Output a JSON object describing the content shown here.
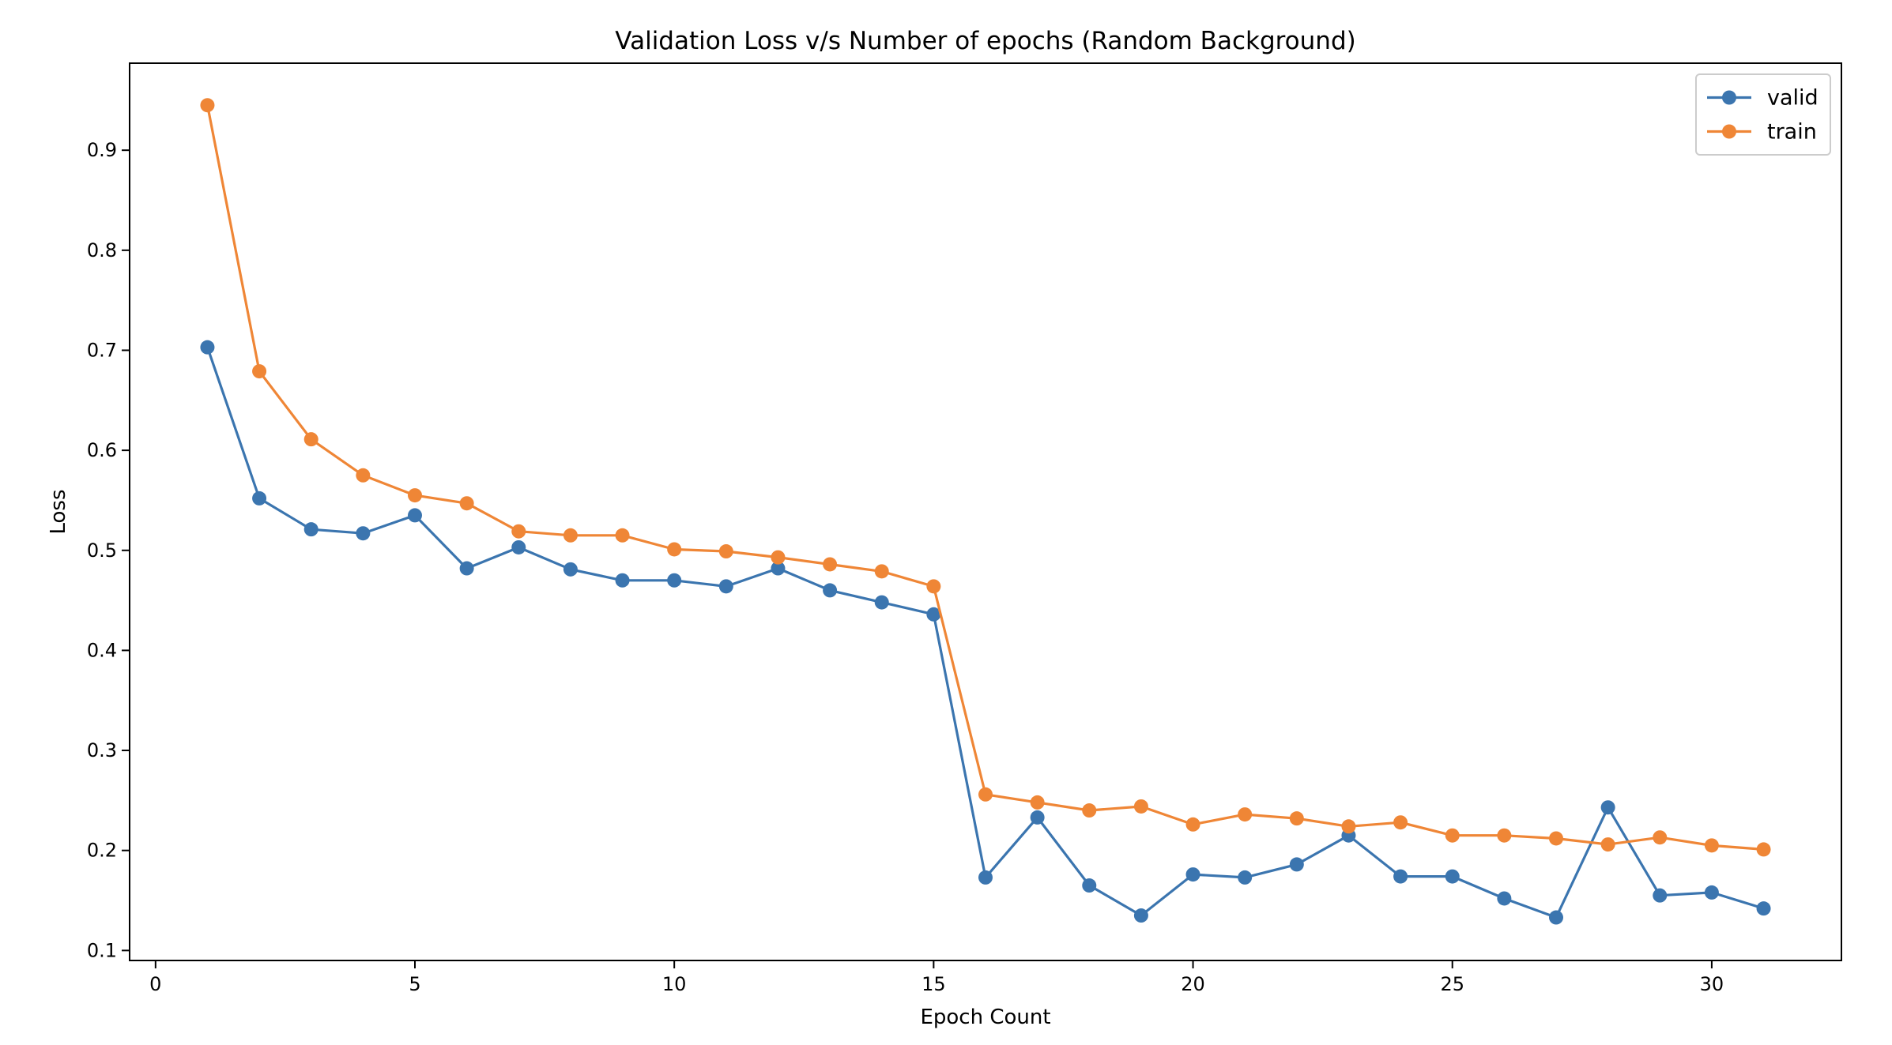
{
  "chart_data": {
    "type": "line",
    "title": "Validation Loss v/s Number of epochs (Random Background)",
    "xlabel": "Epoch Count",
    "ylabel": "Loss",
    "xlim": [
      -0.5,
      32.5
    ],
    "ylim": [
      0.09,
      0.987
    ],
    "xticks": [
      0,
      5,
      10,
      15,
      20,
      25,
      30
    ],
    "yticks": [
      0.1,
      0.2,
      0.3,
      0.4,
      0.5,
      0.6,
      0.7,
      0.8,
      0.9
    ],
    "x": [
      1,
      2,
      3,
      4,
      5,
      6,
      7,
      8,
      9,
      10,
      11,
      12,
      13,
      14,
      15,
      16,
      17,
      18,
      19,
      20,
      21,
      22,
      23,
      24,
      25,
      26,
      27,
      28,
      29,
      30,
      31
    ],
    "series": [
      {
        "name": "valid",
        "color": "#3b75af",
        "values": [
          0.703,
          0.552,
          0.521,
          0.517,
          0.535,
          0.482,
          0.503,
          0.481,
          0.47,
          0.47,
          0.464,
          0.482,
          0.46,
          0.448,
          0.436,
          0.173,
          0.233,
          0.165,
          0.135,
          0.176,
          0.173,
          0.186,
          0.215,
          0.174,
          0.174,
          0.152,
          0.133,
          0.243,
          0.155,
          0.158,
          0.142
        ]
      },
      {
        "name": "train",
        "color": "#ef8636",
        "values": [
          0.945,
          0.679,
          0.611,
          0.575,
          0.555,
          0.547,
          0.519,
          0.515,
          0.515,
          0.501,
          0.499,
          0.493,
          0.486,
          0.479,
          0.464,
          0.256,
          0.248,
          0.24,
          0.244,
          0.226,
          0.236,
          0.232,
          0.224,
          0.228,
          0.215,
          0.215,
          0.212,
          0.206,
          0.213,
          0.205,
          0.201
        ]
      }
    ],
    "grid": false,
    "legend_position": "top-right"
  }
}
